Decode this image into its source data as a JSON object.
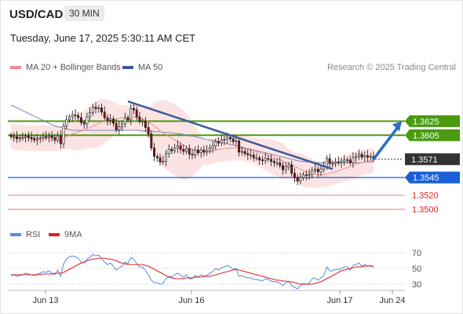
{
  "header": {
    "symbol": "USD/CAD",
    "timeframe": "30 MIN"
  },
  "timestamp": "Tuesday, June 17, 2025 5:30:11 AM CET",
  "legend": {
    "ma20": {
      "label": "MA 20 + Bollinger Bands",
      "color": "#f28c8c"
    },
    "ma50": {
      "label": "MA 50",
      "color": "#3c5a9a"
    },
    "research": "Research © 2025 Trading Central"
  },
  "rsi_legend": {
    "rsi": {
      "label": "RSI",
      "color": "#5b8bd6"
    },
    "ma9": {
      "label": "9MA",
      "color": "#e02020"
    }
  },
  "chart_data": [
    {
      "type": "candlestick",
      "y_range": [
        1.3485,
        1.368
      ],
      "x_ticks": [
        "Jun 13",
        "Jun 16",
        "Jun 17",
        "Jun 24"
      ],
      "current_price": 1.3571,
      "levels": [
        {
          "value": 1.3625,
          "label": "1.3625",
          "kind": "resistance",
          "color": "#4a9a12"
        },
        {
          "value": 1.3605,
          "label": "1.3605",
          "kind": "resistance",
          "color": "#4a9a12"
        },
        {
          "value": 1.3571,
          "label": "1.3571",
          "kind": "last",
          "color": "#333333"
        },
        {
          "value": 1.3545,
          "label": "1.3545",
          "kind": "pivot",
          "color": "#1a5fd6"
        },
        {
          "value": 1.352,
          "label": "1.3520",
          "kind": "support",
          "color": "#e8a0a0"
        },
        {
          "value": 1.35,
          "label": "1.3500",
          "kind": "support",
          "color": "#e8a0a0"
        }
      ],
      "close": [
        1.3603,
        1.3603,
        1.36,
        1.3601,
        1.3602,
        1.3604,
        1.3602,
        1.36,
        1.3598,
        1.36,
        1.3601,
        1.3603,
        1.3602,
        1.3604,
        1.3602,
        1.3598,
        1.3604,
        1.3593,
        1.3618,
        1.3627,
        1.3631,
        1.3634,
        1.3633,
        1.363,
        1.3623,
        1.3621,
        1.3631,
        1.3637,
        1.3645,
        1.3643,
        1.3644,
        1.3638,
        1.363,
        1.3626,
        1.3628,
        1.3622,
        1.3613,
        1.3617,
        1.3621,
        1.363,
        1.3627,
        1.3643,
        1.3641,
        1.3631,
        1.3625,
        1.3625,
        1.3616,
        1.3607,
        1.3587,
        1.3575,
        1.3573,
        1.3567,
        1.3568,
        1.3579,
        1.3585,
        1.3583,
        1.3587,
        1.359,
        1.3585,
        1.3582,
        1.3586,
        1.3578,
        1.3577,
        1.3584,
        1.358,
        1.3584,
        1.3581,
        1.3583,
        1.3587,
        1.359,
        1.3596,
        1.3594,
        1.3598,
        1.3599,
        1.3602,
        1.36,
        1.3596,
        1.3597,
        1.3581,
        1.3582,
        1.3579,
        1.3577,
        1.3577,
        1.3573,
        1.3573,
        1.357,
        1.3569,
        1.3572,
        1.3571,
        1.3568,
        1.3566,
        1.3566,
        1.3562,
        1.3556,
        1.356,
        1.3563,
        1.3551,
        1.3545,
        1.354,
        1.3545,
        1.3549,
        1.3548,
        1.3549,
        1.3555,
        1.3557,
        1.3553,
        1.3557,
        1.356,
        1.3572,
        1.3565,
        1.3565,
        1.3567,
        1.3566,
        1.3568,
        1.357,
        1.357,
        1.3566,
        1.3573,
        1.3575,
        1.3578,
        1.3574,
        1.3576,
        1.3574,
        1.3575,
        1.3571
      ],
      "ma20": [
        1.3604,
        1.3603,
        1.3602,
        1.3602,
        1.3601,
        1.3601,
        1.3601,
        1.3601,
        1.3601,
        1.3601,
        1.3601,
        1.3601,
        1.3601,
        1.3601,
        1.3601,
        1.3601,
        1.3601,
        1.3601,
        1.3602,
        1.3603,
        1.3605,
        1.3607,
        1.3608,
        1.361,
        1.3611,
        1.3612,
        1.3614,
        1.3616,
        1.3618,
        1.362,
        1.3622,
        1.3624,
        1.3625,
        1.3626,
        1.3627,
        1.3628,
        1.3628,
        1.3629,
        1.363,
        1.363,
        1.363,
        1.363,
        1.3631,
        1.363,
        1.3629,
        1.3628,
        1.3626,
        1.3624,
        1.3621,
        1.3618,
        1.3615,
        1.3611,
        1.3608,
        1.3606,
        1.3603,
        1.3601,
        1.3598,
        1.3596,
        1.3593,
        1.3591,
        1.3589,
        1.3587,
        1.3585,
        1.3584,
        1.3583,
        1.3582,
        1.3581,
        1.3581,
        1.3582,
        1.3583,
        1.3584,
        1.3585,
        1.3585,
        1.3586,
        1.3586,
        1.3587,
        1.3587,
        1.3587,
        1.3587,
        1.3587,
        1.3586,
        1.3585,
        1.3584,
        1.3583,
        1.3582,
        1.358,
        1.3579,
        1.3578,
        1.3576,
        1.3575,
        1.3573,
        1.3572,
        1.357,
        1.3568,
        1.3566,
        1.3565,
        1.3563,
        1.3561,
        1.3559,
        1.3557,
        1.3555,
        1.3553,
        1.3552,
        1.3551,
        1.355,
        1.3549,
        1.3549,
        1.3549,
        1.355,
        1.3551,
        1.3552,
        1.3553,
        1.3555,
        1.3556,
        1.3558,
        1.3559,
        1.3561,
        1.3562,
        1.3564,
        1.3565,
        1.3566,
        1.3567,
        1.3568,
        1.3569,
        1.3569
      ],
      "ma50": [
        1.3648,
        1.3646,
        1.3644,
        1.3642,
        1.364,
        1.3638,
        1.3636,
        1.3634,
        1.3632,
        1.363,
        1.3628,
        1.3626,
        1.3624,
        1.3622,
        1.362,
        1.3618,
        1.3617,
        1.3616,
        1.3615,
        1.3614,
        1.3613,
        1.3612,
        1.3612,
        1.3612,
        1.3612,
        1.3612,
        1.3612,
        1.3612,
        1.3612,
        1.3612,
        1.3612,
        1.3612,
        1.3612,
        1.3612,
        1.3612,
        1.3612,
        1.3612,
        1.3612,
        1.3612,
        1.3612,
        1.3612,
        1.3612,
        1.3612,
        1.3612,
        1.3612,
        1.3611,
        1.3611,
        1.3611,
        1.3611,
        1.361,
        1.361,
        1.361,
        1.3609,
        1.3609,
        1.3609,
        1.3608,
        1.3608,
        1.3607,
        1.3607,
        1.3606,
        1.3605,
        1.3604,
        1.3604,
        1.3603,
        1.3602,
        1.3601,
        1.36,
        1.3599,
        1.3598,
        1.3598,
        1.3597,
        1.3596,
        1.3595,
        1.3594,
        1.3593,
        1.3592,
        1.3591,
        1.359,
        1.3589,
        1.3588,
        1.3587,
        1.3586,
        1.3585,
        1.3584,
        1.3583,
        1.3582,
        1.3581,
        1.358,
        1.3579,
        1.3578,
        1.3577,
        1.3576,
        1.3575,
        1.3574,
        1.3573,
        1.3572,
        1.3571,
        1.357,
        1.3569,
        1.3568,
        1.3568,
        1.3567,
        1.3567,
        1.3566,
        1.3566,
        1.3566,
        1.3566,
        1.3566,
        1.3566,
        1.3566,
        1.3566,
        1.3566,
        1.3566,
        1.3566,
        1.3566,
        1.3566,
        1.3566,
        1.3566,
        1.3566,
        1.3566,
        1.3566,
        1.3567,
        1.3567,
        1.3567,
        1.3567
      ]
    },
    {
      "type": "line",
      "series": [
        {
          "name": "RSI"
        },
        {
          "name": "9MA"
        }
      ],
      "y_range": [
        20,
        80
      ],
      "y_ticks": [
        70,
        50,
        30
      ],
      "rsi": [
        41,
        42,
        40,
        41,
        42,
        44,
        43,
        42,
        41,
        43,
        44,
        46,
        45,
        47,
        44,
        42,
        48,
        40,
        56,
        62,
        65,
        66,
        65,
        63,
        58,
        57,
        62,
        64,
        68,
        66,
        67,
        63,
        58,
        55,
        57,
        53,
        48,
        51,
        53,
        58,
        56,
        64,
        62,
        56,
        52,
        52,
        47,
        42,
        35,
        32,
        32,
        30,
        31,
        37,
        40,
        39,
        42,
        44,
        41,
        39,
        42,
        37,
        37,
        41,
        39,
        42,
        40,
        41,
        44,
        46,
        50,
        48,
        51,
        52,
        54,
        52,
        49,
        50,
        40,
        41,
        39,
        38,
        38,
        36,
        36,
        35,
        34,
        37,
        36,
        34,
        33,
        33,
        31,
        28,
        32,
        34,
        28,
        26,
        24,
        28,
        31,
        30,
        31,
        37,
        38,
        35,
        38,
        41,
        52,
        47,
        47,
        49,
        48,
        50,
        52,
        52,
        48,
        54,
        55,
        57,
        53,
        55,
        53,
        54,
        51
      ],
      "ma9": [
        42,
        42,
        42,
        42,
        42,
        42,
        42,
        42,
        42,
        42,
        42,
        43,
        43,
        43,
        43,
        44,
        44,
        44,
        45,
        47,
        49,
        51,
        53,
        55,
        57,
        58,
        60,
        61,
        62,
        62,
        63,
        63,
        63,
        62,
        62,
        61,
        60,
        58,
        57,
        56,
        55,
        55,
        55,
        55,
        55,
        55,
        54,
        53,
        51,
        49,
        47,
        45,
        43,
        41,
        39,
        38,
        37,
        37,
        37,
        37,
        38,
        38,
        38,
        39,
        39,
        39,
        40,
        40,
        40,
        41,
        42,
        43,
        44,
        45,
        46,
        47,
        48,
        49,
        48,
        47,
        46,
        45,
        44,
        43,
        42,
        41,
        40,
        39,
        38,
        37,
        36,
        35,
        35,
        34,
        34,
        33,
        33,
        32,
        31,
        30,
        30,
        30,
        30,
        30,
        31,
        32,
        33,
        35,
        37,
        39,
        41,
        43,
        45,
        47,
        48,
        49,
        50,
        51,
        52,
        52,
        52,
        53,
        53,
        53,
        53
      ]
    }
  ]
}
